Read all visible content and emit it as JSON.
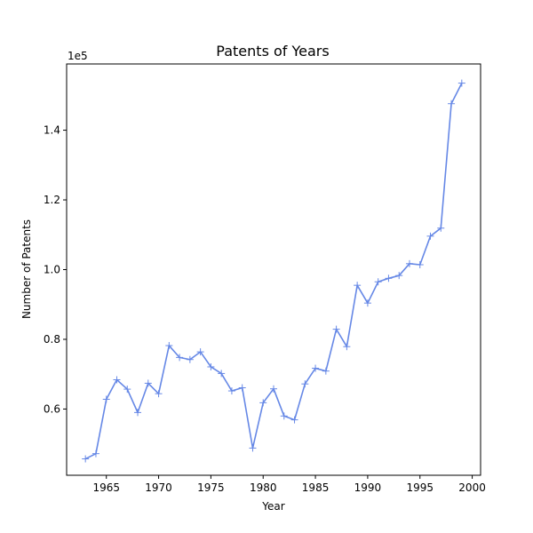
{
  "chart_data": {
    "type": "line",
    "title": "Patents of Years",
    "xlabel": "Year",
    "ylabel": "Number of Patents",
    "y_offset_label": "1e5",
    "y_scale": 100000,
    "xlim": [
      1961.2,
      2000.8
    ],
    "ylim": [
      41000,
      159000
    ],
    "x_ticks": [
      1965,
      1970,
      1975,
      1980,
      1985,
      1990,
      1995,
      2000
    ],
    "y_ticks": [
      0.6,
      0.8,
      1.0,
      1.2,
      1.4
    ],
    "grid": false,
    "marker": "plus",
    "line_color": "#6688e6",
    "series": [
      {
        "x": [
          1963,
          1964,
          1965,
          1966,
          1967,
          1968,
          1969,
          1970,
          1971,
          1972,
          1973,
          1974,
          1975,
          1976,
          1977,
          1978,
          1979,
          1980,
          1981,
          1982,
          1983,
          1984,
          1985,
          1986,
          1987,
          1988,
          1989,
          1990,
          1991,
          1992,
          1993,
          1994,
          1995,
          1996,
          1997,
          1998,
          1999
        ],
        "values": [
          45700,
          47200,
          62800,
          68400,
          65700,
          59000,
          67400,
          64400,
          78200,
          74800,
          74200,
          76400,
          72100,
          70200,
          65200,
          66100,
          48800,
          61800,
          65800,
          58000,
          56900,
          67200,
          71700,
          70900,
          82900,
          77900,
          95500,
          90400,
          96500,
          97500,
          98300,
          101700,
          101400,
          109600,
          111900,
          147600,
          153500
        ]
      }
    ]
  }
}
